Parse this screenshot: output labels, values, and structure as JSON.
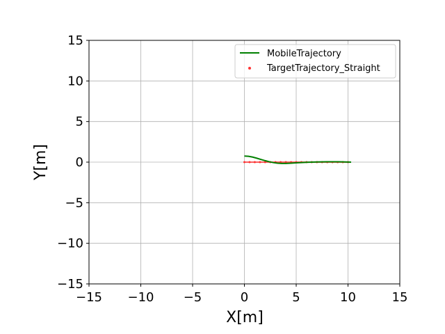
{
  "chart_data": {
    "type": "line",
    "xlabel": "X[m]",
    "ylabel": "Y[m]",
    "xlim": [
      -15,
      15
    ],
    "ylim": [
      -15,
      15
    ],
    "xticks": [
      -15,
      -10,
      -5,
      0,
      5,
      10,
      15
    ],
    "yticks": [
      -15,
      -10,
      -5,
      0,
      5,
      10,
      15
    ],
    "xtick_labels": [
      "−15",
      "−10",
      "−5",
      "0",
      "5",
      "10",
      "15"
    ],
    "ytick_labels": [
      "−15",
      "−10",
      "−5",
      "0",
      "5",
      "10",
      "15"
    ],
    "grid": true,
    "legend_position": "top-right",
    "series": [
      {
        "name": "MobileTrajectory",
        "kind": "line",
        "color": "#008000",
        "x": [
          0.0,
          0.4,
          0.8,
          1.2,
          1.6,
          2.0,
          2.4,
          2.8,
          3.2,
          3.6,
          4.0,
          4.5,
          5.0,
          5.5,
          6.0,
          6.5,
          7.0,
          7.5,
          8.0,
          8.5,
          9.0,
          9.5,
          10.0,
          10.3
        ],
        "y": [
          0.75,
          0.72,
          0.62,
          0.48,
          0.33,
          0.18,
          0.05,
          -0.06,
          -0.13,
          -0.16,
          -0.16,
          -0.13,
          -0.09,
          -0.05,
          -0.02,
          0.0,
          0.02,
          0.03,
          0.04,
          0.04,
          0.04,
          0.03,
          0.01,
          0.0
        ]
      },
      {
        "name": "TargetTrajectory_Straight",
        "kind": "scatter",
        "color": "#ff3333",
        "x": [
          0.0,
          0.5,
          1.0,
          1.5,
          2.0,
          2.5,
          3.0,
          3.5,
          4.0,
          4.5,
          5.0,
          5.5,
          6.0,
          6.5,
          7.0,
          7.5,
          8.0,
          8.5,
          9.0,
          9.5,
          10.0
        ],
        "y": [
          0,
          0,
          0,
          0,
          0,
          0,
          0,
          0,
          0,
          0,
          0,
          0,
          0,
          0,
          0,
          0,
          0,
          0,
          0,
          0,
          0
        ]
      }
    ]
  }
}
